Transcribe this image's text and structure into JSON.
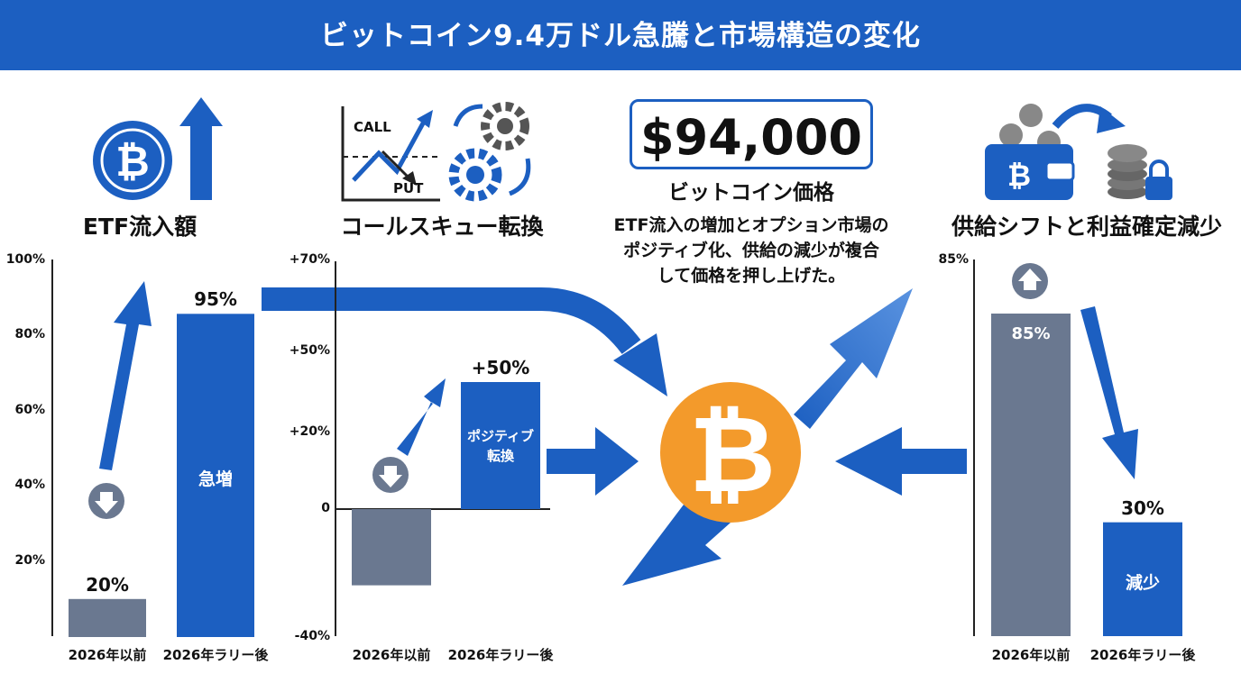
{
  "title": "ビットコイン9.4万ドル急騰と市場構造の変化",
  "price": {
    "value": "$94,000",
    "label": "ビットコイン価格",
    "caption_lines": [
      "ETF流入の増加とオプション市場の",
      "ポジティブ化、供給の減少が複合",
      "して価格を押し上げた。"
    ]
  },
  "icons": {
    "etf": "bitcoin-coin-up-arrow-icon",
    "skew": "call-put-chart-gears-icon",
    "supply": "wallet-to-locked-coins-icon",
    "center": "bitcoin-icon"
  },
  "colors": {
    "banner": "#1c5fc1",
    "blue_bar": "#1c5fc1",
    "gray_bar": "#6a7890",
    "bitcoin": "#f39a2b"
  },
  "chart_data": [
    {
      "type": "bar",
      "title": "ETF流入額",
      "categories": [
        "2026年以前",
        "2026年ラリー後"
      ],
      "values": [
        20,
        95
      ],
      "value_labels": [
        "20%",
        "95%"
      ],
      "bar_labels": [
        "",
        "急増"
      ],
      "yticks": [
        "20%",
        "40%",
        "60%",
        "80%",
        "100%"
      ],
      "ylim": [
        10,
        100
      ]
    },
    {
      "type": "bar",
      "title": "コールスキュー転換",
      "categories": [
        "2026年以前",
        "2026年ラリー後"
      ],
      "values": [
        -30,
        50
      ],
      "value_labels": [
        "",
        "+50%"
      ],
      "bar_labels": [
        "",
        "ポジティブ|転換"
      ],
      "yticks": [
        "+70%",
        "+50%",
        "+20%",
        "0",
        "-40%"
      ],
      "ylim": [
        -40,
        70
      ]
    },
    {
      "type": "bar",
      "title": "供給シフトと利益確定減少",
      "categories": [
        "2026年以前",
        "2026年ラリー後"
      ],
      "values": [
        85,
        30
      ],
      "value_labels": [
        "85%",
        "30%"
      ],
      "bar_labels": [
        "",
        "減少"
      ],
      "yticks": [
        "85%"
      ],
      "ylim": [
        0,
        100
      ]
    }
  ],
  "icon_labels": {
    "call": "CALL",
    "put": "PUT"
  }
}
